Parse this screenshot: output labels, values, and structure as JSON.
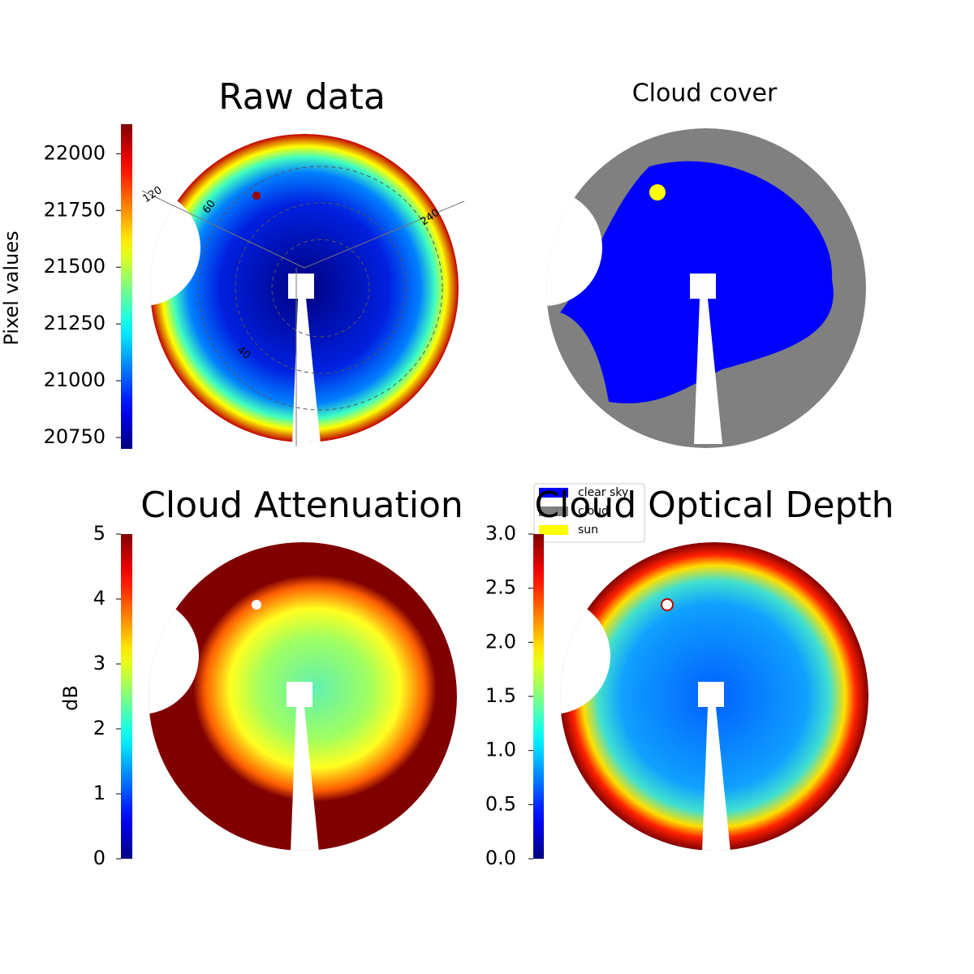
{
  "chart_data": [
    {
      "type": "image",
      "title": "Raw data",
      "colorbar_label": "Pixel values",
      "colormap": "jet",
      "clim": [
        20700,
        22130
      ],
      "cticks": [
        20750,
        21000,
        21250,
        21500,
        21750,
        22000
      ],
      "annotations": [
        "120",
        "60",
        "240",
        "40"
      ]
    },
    {
      "type": "image",
      "title": "Cloud cover",
      "legend": [
        {
          "name": "clear sky",
          "color": "#0000ff"
        },
        {
          "name": "cloud",
          "color": "#808080"
        },
        {
          "name": "sun",
          "color": "#ffff00"
        }
      ]
    },
    {
      "type": "image",
      "title": "Cloud Attenuation",
      "colorbar_label": "dB",
      "colormap": "jet",
      "clim": [
        0,
        5
      ],
      "cticks": [
        0,
        1,
        2,
        3,
        4,
        5
      ]
    },
    {
      "type": "image",
      "title": "Cloud Optical Depth",
      "colormap": "jet",
      "clim": [
        0,
        3
      ],
      "cticks": [
        {
          "value": 0,
          "label": "0.0"
        },
        0.5,
        {
          "value": 1,
          "label": "1.0"
        },
        1.5,
        {
          "value": 2,
          "label": "2.0"
        },
        2.5,
        {
          "value": 3,
          "label": "3.0"
        }
      ]
    }
  ]
}
